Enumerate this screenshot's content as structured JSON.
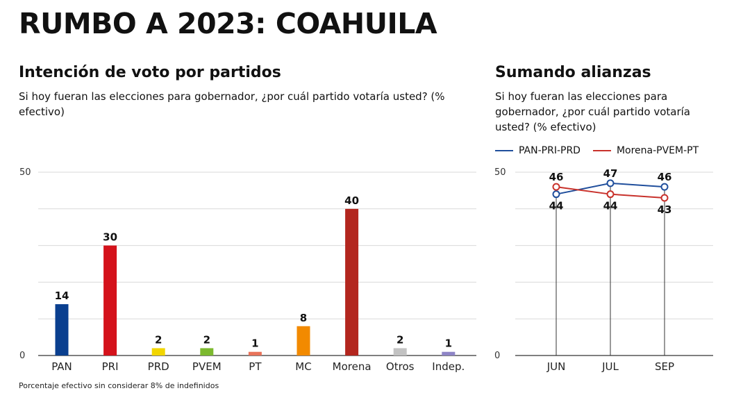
{
  "header": {
    "title": "RUMBO A 2023: COAHUILA"
  },
  "left": {
    "title": "Intención de voto por partidos",
    "subtitle": "Si hoy fueran las elecciones para gobernador, ¿por cuál partido votaría usted? (% efectivo)"
  },
  "right": {
    "title": "Sumando alianzas",
    "subtitle": "Si hoy fueran las elecciones para gobernador, ¿por cuál partido votaría usted? (% efectivo)"
  },
  "footnote": "Porcentaje efectivo sin considerar 8% de indefinidos",
  "chart_data": [
    {
      "type": "bar",
      "title": "Intención de voto por partidos",
      "categories": [
        "PAN",
        "PRI",
        "PRD",
        "PVEM",
        "PT",
        "MC",
        "Morena",
        "Otros",
        "Indep."
      ],
      "values": [
        14,
        30,
        2,
        2,
        1,
        8,
        40,
        2,
        1
      ],
      "colors": [
        "#0a3f8f",
        "#d4121b",
        "#f2d600",
        "#7cb92f",
        "#e8735a",
        "#f28a00",
        "#b3261e",
        "#c2c2c2",
        "#8e85c6"
      ],
      "ylim": [
        0,
        50
      ],
      "yticks": [
        0,
        50
      ],
      "grid": true
    },
    {
      "type": "line",
      "title": "Sumando alianzas",
      "x": [
        "JUN",
        "JUL",
        "SEP"
      ],
      "series": [
        {
          "name": "PAN-PRI-PRD",
          "values": [
            44,
            47,
            46
          ],
          "color": "#1f4e9c"
        },
        {
          "name": "Morena-PVEM-PT",
          "values": [
            46,
            44,
            43
          ],
          "color": "#c8312b"
        }
      ],
      "ylim": [
        0,
        50
      ],
      "yticks": [
        0,
        50
      ],
      "grid": true,
      "legend": "top"
    }
  ]
}
